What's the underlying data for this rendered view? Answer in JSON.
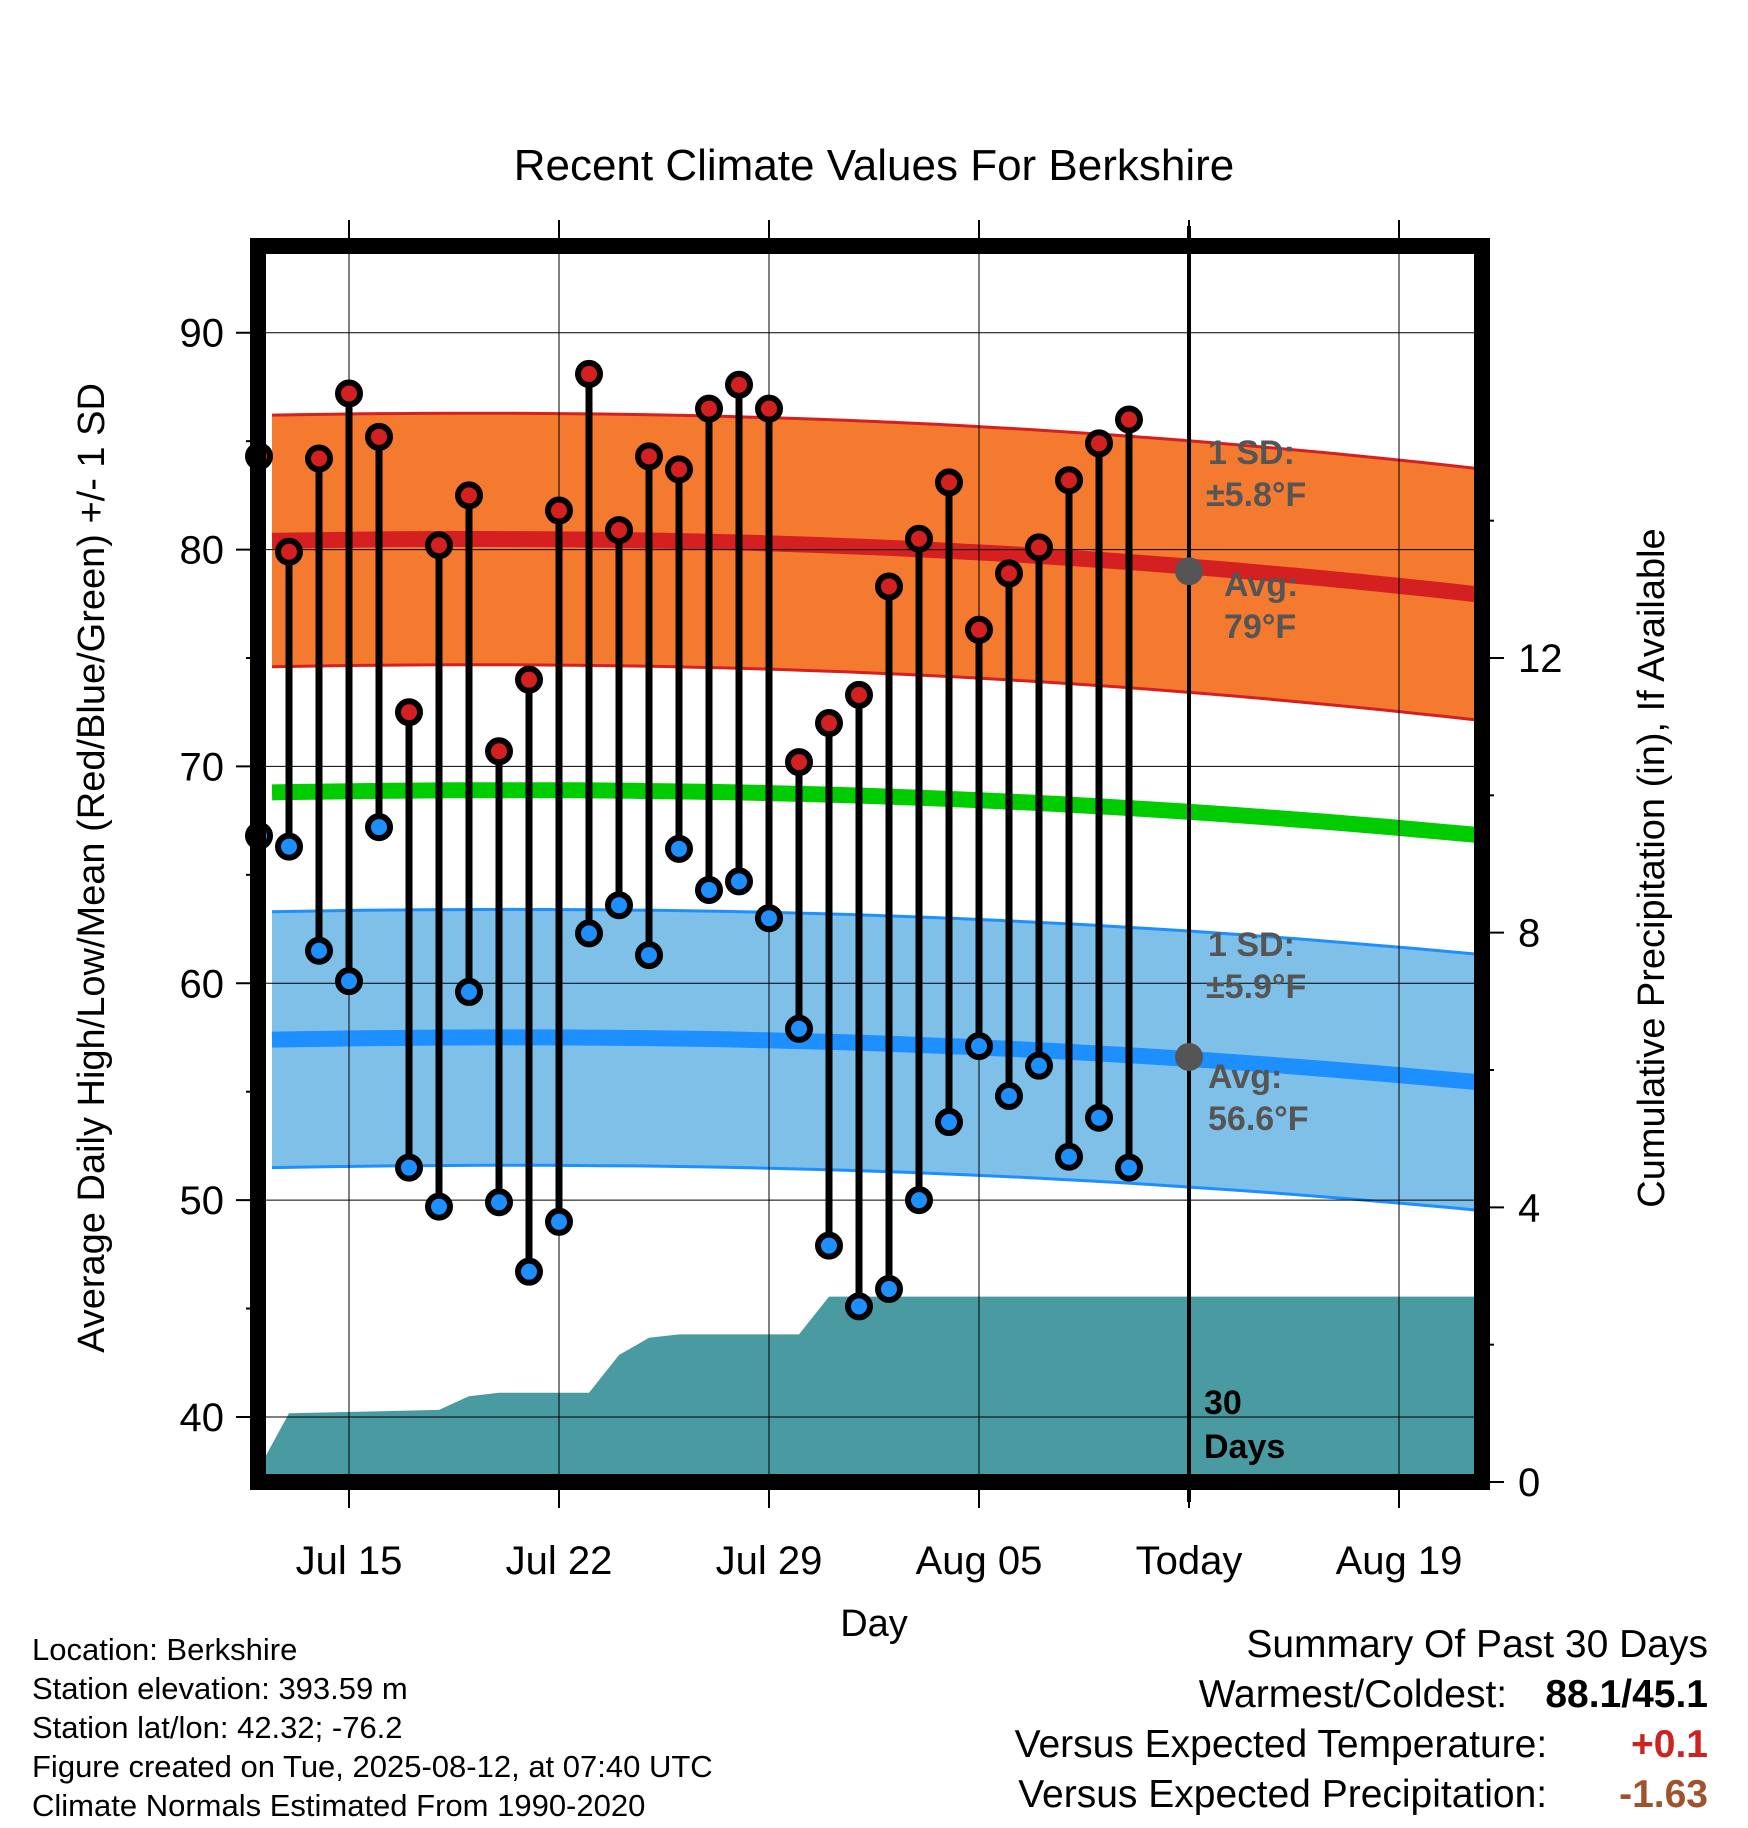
{
  "chart_data": {
    "type": "line",
    "title": "Recent Climate Values For Berkshire",
    "xlabel": "Day",
    "ylabel": "Average Daily High/Low/Mean (Red/Blue/Green) +/- 1 SD",
    "y2label": "Cumulative Precipitation (in), If Available",
    "ylim": [
      37,
      94
    ],
    "y2lim": [
      0,
      18
    ],
    "yticks": [
      40,
      50,
      60,
      70,
      80,
      90
    ],
    "y2ticks": [
      0,
      4,
      8,
      12
    ],
    "x_tick_labels": [
      "Jul 15",
      "Jul 22",
      "Jul 29",
      "Aug 05",
      "Today",
      "Aug 19"
    ],
    "x_tick_dates": [
      "2025-07-15",
      "2025-07-22",
      "2025-07-29",
      "2025-08-05",
      "2025-08-12",
      "2025-08-19"
    ],
    "today": "2025-08-12",
    "days": [
      "2025-07-12",
      "2025-07-13",
      "2025-07-14",
      "2025-07-15",
      "2025-07-16",
      "2025-07-17",
      "2025-07-18",
      "2025-07-19",
      "2025-07-20",
      "2025-07-21",
      "2025-07-22",
      "2025-07-23",
      "2025-07-24",
      "2025-07-25",
      "2025-07-26",
      "2025-07-27",
      "2025-07-28",
      "2025-07-29",
      "2025-07-30",
      "2025-07-31",
      "2025-08-01",
      "2025-08-02",
      "2025-08-03",
      "2025-08-04",
      "2025-08-05",
      "2025-08-06",
      "2025-08-07",
      "2025-08-08",
      "2025-08-09",
      "2025-08-10",
      "2025-08-11"
    ],
    "daily_high": [
      84.3,
      79.9,
      84.2,
      87.2,
      85.2,
      72.5,
      80.2,
      82.5,
      70.7,
      74.0,
      81.8,
      88.1,
      80.9,
      84.3,
      83.7,
      86.5,
      87.6,
      86.5,
      70.2,
      72.0,
      73.3,
      78.3,
      80.5,
      83.1,
      76.3,
      78.9,
      80.1,
      83.2,
      84.9,
      86.0
    ],
    "daily_high_dates": [
      "2025-07-12",
      "2025-07-13",
      "2025-07-14",
      "2025-07-15",
      "2025-07-16",
      "2025-07-17",
      "2025-07-18",
      "2025-07-19",
      "2025-07-20",
      "2025-07-21",
      "2025-07-22",
      "2025-07-23",
      "2025-07-24",
      "2025-07-25",
      "2025-07-26",
      "2025-07-27",
      "2025-07-28",
      "2025-07-29",
      "2025-07-30",
      "2025-07-31",
      "2025-08-01",
      "2025-08-02",
      "2025-08-03",
      "2025-08-04",
      "2025-08-05",
      "2025-08-06",
      "2025-08-07",
      "2025-08-08",
      "2025-08-09",
      "2025-08-10"
    ],
    "daily_low": [
      66.8,
      66.3,
      61.5,
      60.1,
      67.2,
      51.5,
      49.7,
      59.6,
      49.9,
      46.7,
      49.0,
      62.3,
      63.6,
      61.3,
      66.2,
      64.3,
      64.7,
      63.0,
      57.9,
      47.9,
      45.1,
      45.9,
      50.0,
      53.6,
      57.1,
      54.8,
      56.2,
      52.0,
      53.8,
      51.5
    ],
    "series": [
      {
        "name": "Normal High",
        "start": 80.4,
        "end": 77.7,
        "sd": 5.8
      },
      {
        "name": "Normal Mean",
        "start": 68.8,
        "end": 66.6
      },
      {
        "name": "Normal Low",
        "start": 57.4,
        "end": 55.2,
        "sd": 5.9
      }
    ],
    "cumulative_precip_dates": [
      "2025-07-12",
      "2025-07-13",
      "2025-07-18",
      "2025-07-19",
      "2025-07-20",
      "2025-07-23",
      "2025-07-24",
      "2025-07-25",
      "2025-07-26",
      "2025-07-27",
      "2025-07-30",
      "2025-07-31",
      "2025-08-22"
    ],
    "cumulative_precip": [
      0.2,
      1.0,
      1.05,
      1.25,
      1.3,
      1.3,
      1.85,
      2.1,
      2.15,
      2.15,
      2.15,
      2.7,
      2.7
    ],
    "colors": {
      "high": "#d42020",
      "high_band": "#f47a30",
      "mean": "#00cc00",
      "low": "#1e8fff",
      "low_band": "#7fc0e8",
      "precip": "#4a9aa2",
      "annotation": "#555555"
    }
  },
  "annotations": {
    "high_sd_label": "1 SD:",
    "high_sd_value": "±5.8°F",
    "high_avg_label": "Avg:",
    "high_avg_value": "79°F",
    "low_sd_label": "1 SD:",
    "low_sd_value": "±5.9°F",
    "low_avg_label": "Avg:",
    "low_avg_value": "56.6°F",
    "precip_days_line1": "30",
    "precip_days_line2": "Days"
  },
  "station_info": {
    "location": "Location: Berkshire",
    "elevation": "Station elevation: 393.59 m",
    "latlon": "Station lat/lon: 42.32; -76.2",
    "created": "Figure created on Tue, 2025-08-12, at 07:40 UTC",
    "normals": "Climate Normals Estimated From 1990-2020"
  },
  "summary": {
    "title": "Summary Of Past 30 Days",
    "warm_cold_label": "Warmest/Coldest:",
    "warm_cold_value": "88.1/45.1",
    "temp_label": "Versus Expected Temperature:",
    "temp_value": "+0.1",
    "temp_color": "#cc2222",
    "precip_label": "Versus Expected Precipitation:",
    "precip_value": "-1.63",
    "precip_color": "#a0522d"
  }
}
